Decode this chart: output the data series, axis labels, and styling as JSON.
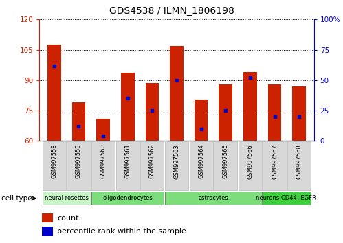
{
  "title": "GDS4538 / ILMN_1806198",
  "samples": [
    "GSM997558",
    "GSM997559",
    "GSM997560",
    "GSM997561",
    "GSM997562",
    "GSM997563",
    "GSM997564",
    "GSM997565",
    "GSM997566",
    "GSM997567",
    "GSM997568"
  ],
  "counts": [
    107.5,
    79.0,
    71.0,
    93.5,
    88.5,
    107.0,
    80.5,
    88.0,
    94.0,
    88.0,
    87.0
  ],
  "percentile_ranks": [
    62,
    12,
    4,
    35,
    25,
    50,
    10,
    25,
    52,
    20,
    20
  ],
  "ylim_left": [
    60,
    120
  ],
  "ylim_right": [
    0,
    100
  ],
  "yticks_left": [
    60,
    75,
    90,
    105,
    120
  ],
  "yticks_right": [
    0,
    25,
    50,
    75,
    100
  ],
  "groups": [
    {
      "label": "neural rosettes",
      "start": 0,
      "end": 1,
      "color": "#c8f5c8"
    },
    {
      "label": "oligodendrocytes",
      "start": 2,
      "end": 4,
      "color": "#7ddc7d"
    },
    {
      "label": "astrocytes",
      "start": 5,
      "end": 8,
      "color": "#7ddc7d"
    },
    {
      "label": "neurons CD44- EGFR-",
      "start": 9,
      "end": 10,
      "color": "#3ecf3e"
    }
  ],
  "bar_color": "#cc2200",
  "marker_color": "#0000cc",
  "tick_color_left": "#cc2200",
  "tick_color_right": "#0000cc"
}
